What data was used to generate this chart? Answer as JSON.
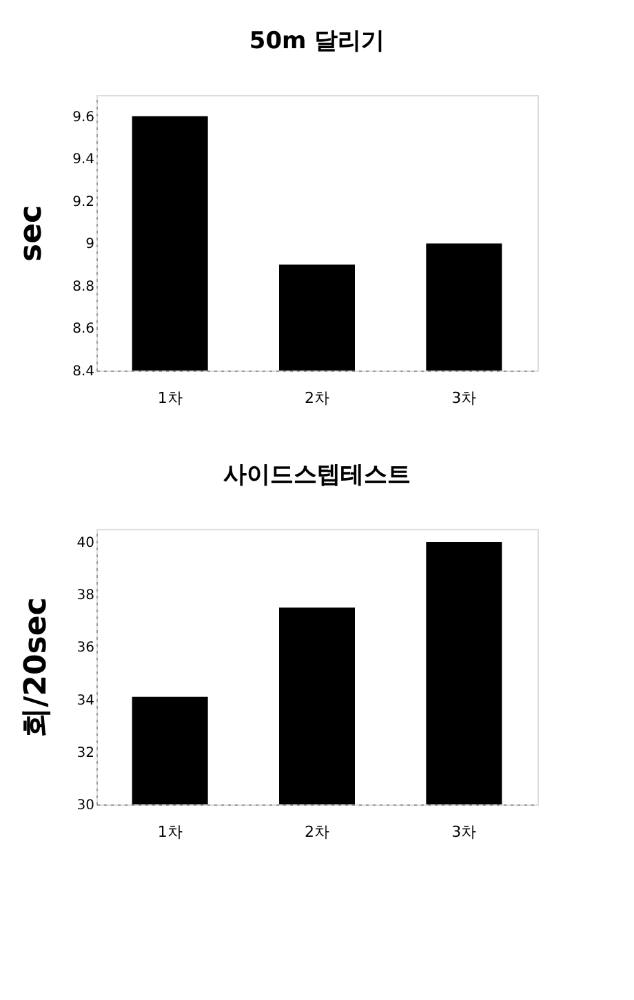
{
  "chart_data": [
    {
      "type": "bar",
      "title": "50m 달리기",
      "ylabel": "sec",
      "categories": [
        "1차",
        "2차",
        "3차"
      ],
      "values": [
        9.6,
        8.9,
        9.0
      ],
      "color": "#000000",
      "ylim": [
        8.4,
        9.7
      ],
      "yticks": [
        8.4,
        8.6,
        8.8,
        9,
        9.2,
        9.4,
        9.6
      ],
      "grid": false
    },
    {
      "type": "bar",
      "title": "사이드스텝테스트",
      "ylabel": "회/20sec",
      "categories": [
        "1차",
        "2차",
        "3차"
      ],
      "values": [
        34.1,
        37.5,
        40
      ],
      "color": "#000000",
      "ylim": [
        30,
        40.5
      ],
      "yticks": [
        30,
        32,
        34,
        36,
        38,
        40
      ],
      "grid": false
    }
  ]
}
